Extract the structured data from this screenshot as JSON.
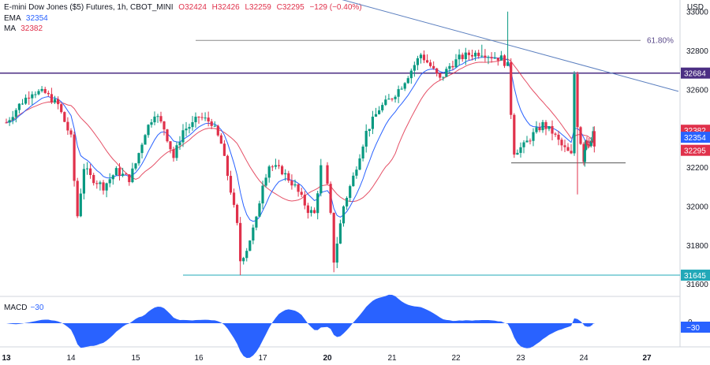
{
  "legend": {
    "symbol": "E-mini Dow Jones ($5) Futures, 1h, CBOT_MINI",
    "open": "O32424",
    "high": "H32426",
    "low": "L32259",
    "close": "C32295",
    "change": "−129 (−0.40%)",
    "ema_label": "EMA",
    "ema_value": "32354",
    "ma_label": "MA",
    "ma_value": "32382"
  },
  "currency": "USD",
  "macd": {
    "label": "MACD",
    "value": "−30",
    "badge": "−30",
    "zero_tick": "0"
  },
  "colors": {
    "up": "#089981",
    "down": "#e0314b",
    "ema": "#2962ff",
    "ma": "#e0314b",
    "trendline": "#5b7fbf",
    "level": "#4b2e83",
    "macd_fill": "#2962ff",
    "support": "#22a8b8"
  },
  "chart_data": {
    "type": "candlestick",
    "timeframe": "1h",
    "ylim": [
      31560,
      33080
    ],
    "y_ticks": [
      33000,
      32800,
      32600,
      32400,
      32200,
      32000,
      31800,
      31600
    ],
    "x_ticks": [
      "13",
      "14",
      "15",
      "16",
      "17",
      "20",
      "21",
      "22",
      "23",
      "24",
      "27"
    ],
    "x_ticks_bold": [
      "13",
      "20",
      "27"
    ],
    "badges": [
      {
        "value": "32684",
        "color": "#4b2e83"
      },
      {
        "value": "32382",
        "color": "#e0314b"
      },
      {
        "value": "32354",
        "color": "#2962ff"
      },
      {
        "value": "32295",
        "color": "#e0314b"
      },
      {
        "value": "31645",
        "color": "#22a8b8"
      }
    ],
    "levels": [
      {
        "name": "resistance",
        "value": 32684
      },
      {
        "name": "fib-618",
        "value": 32852,
        "label": "61.80%"
      },
      {
        "name": "support",
        "value": 31645
      },
      {
        "name": "short-support",
        "value": 32222
      }
    ],
    "trendline": {
      "start": {
        "day": 13.0,
        "price": 33300
      },
      "end": {
        "day": 26.4,
        "price": 32590
      }
    },
    "path": [
      [
        13.0,
        32430
      ],
      [
        13.2,
        32520
      ],
      [
        13.4,
        32590
      ],
      [
        13.6,
        32580
      ],
      [
        13.8,
        32520
      ],
      [
        14.0,
        32350
      ],
      [
        14.05,
        32130
      ],
      [
        14.1,
        31950
      ],
      [
        14.2,
        32200
      ],
      [
        14.3,
        32150
      ],
      [
        14.5,
        32100
      ],
      [
        14.7,
        32180
      ],
      [
        14.9,
        32140
      ],
      [
        15.0,
        32220
      ],
      [
        15.15,
        32380
      ],
      [
        15.3,
        32480
      ],
      [
        15.45,
        32400
      ],
      [
        15.6,
        32250
      ],
      [
        15.75,
        32390
      ],
      [
        15.9,
        32420
      ],
      [
        16.0,
        32460
      ],
      [
        16.2,
        32430
      ],
      [
        16.35,
        32320
      ],
      [
        16.5,
        32080
      ],
      [
        16.6,
        31900
      ],
      [
        16.65,
        31720
      ],
      [
        16.75,
        31780
      ],
      [
        16.9,
        31930
      ],
      [
        17.0,
        32120
      ],
      [
        17.1,
        32210
      ],
      [
        17.3,
        32180
      ],
      [
        17.5,
        32100
      ],
      [
        17.7,
        31980
      ],
      [
        17.8,
        31960
      ],
      [
        17.9,
        32200
      ],
      [
        18.0,
        32380
      ],
      [
        18.2,
        32450
      ],
      [
        18.4,
        32510
      ],
      [
        18.6,
        32560
      ],
      [
        18.8,
        32540
      ],
      [
        18.9,
        32500
      ],
      [
        19.0,
        32470
      ],
      [
        19.1,
        32300
      ],
      [
        19.2,
        32100
      ],
      [
        19.4,
        32060
      ],
      [
        19.6,
        32260
      ],
      [
        19.8,
        32200
      ],
      [
        20.0,
        32100
      ],
      [
        20.05,
        31950
      ],
      [
        20.1,
        31720
      ],
      [
        20.25,
        32000
      ],
      [
        20.4,
        32150
      ],
      [
        20.6,
        32380
      ],
      [
        20.8,
        32500
      ],
      [
        21.0,
        32560
      ],
      [
        21.15,
        32620
      ],
      [
        21.3,
        32700
      ],
      [
        21.45,
        32780
      ],
      [
        21.6,
        32720
      ],
      [
        21.75,
        32650
      ],
      [
        21.9,
        32720
      ],
      [
        22.05,
        32760
      ],
      [
        22.2,
        32780
      ],
      [
        22.4,
        32790
      ],
      [
        22.55,
        32770
      ],
      [
        22.7,
        32760
      ],
      [
        22.8,
        32720
      ],
      [
        22.85,
        32480
      ],
      [
        22.9,
        32280
      ],
      [
        23.05,
        32310
      ],
      [
        23.2,
        32370
      ],
      [
        23.35,
        32420
      ],
      [
        23.5,
        32380
      ],
      [
        23.65,
        32310
      ],
      [
        23.8,
        32260
      ],
      [
        23.85,
        32680
      ],
      [
        23.9,
        32420
      ],
      [
        24.0,
        32240
      ],
      [
        24.1,
        32350
      ],
      [
        24.25,
        32300
      ],
      [
        24.4,
        32330
      ],
      [
        24.45,
        32380
      ],
      [
        24.5,
        32295
      ]
    ],
    "key_prices": {
      "high_22": 32830,
      "spike_22_8": 33000,
      "low_16": 31645,
      "low_20": 31660,
      "low_23_9": 32060
    }
  }
}
